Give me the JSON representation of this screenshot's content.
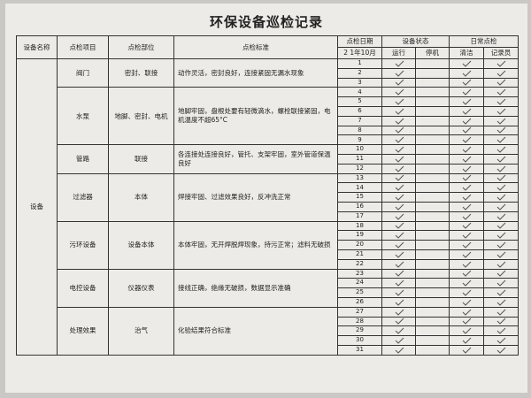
{
  "title": "环保设备巡检记录",
  "header": {
    "columns": [
      "设备名称",
      "点检项目",
      "点检部位",
      "点检标准"
    ],
    "date": "点检日期",
    "date_value": "2 1年10月",
    "status": "设备状态",
    "status_sub": [
      "运行",
      "停机"
    ],
    "daily": "日常点检",
    "daily_sub": [
      "清洁",
      "记录员"
    ]
  },
  "table": {
    "group": "设备",
    "rows": [
      {
        "item": "阀门",
        "part": "密封、联接",
        "standard": "动作灵活，密封良好，连接紧固无漏水现象",
        "days": [
          1,
          2,
          3
        ]
      },
      {
        "item": "水泵",
        "part": "地脚、密封、电机",
        "standard": "地脚牢固，盘根处要有轻微滴水，螺栓联接紧固，电机温度不超65°C",
        "days": [
          4,
          5,
          6,
          7,
          8,
          9
        ]
      },
      {
        "item": "管路",
        "part": "联接",
        "standard": "各连接处连接良好，管托、支架牢固，室外管道保温良好",
        "days": [
          10,
          11,
          12
        ]
      },
      {
        "item": "过滤器",
        "part": "本体",
        "standard": "焊接牢固、过滤效果良好，反冲洗正常",
        "days": [
          13,
          14,
          15,
          16,
          17
        ]
      },
      {
        "item": "污环设备",
        "part": "设备本体",
        "standard": "本体牢固，无开焊脱焊现象，持污正常；滤料无破损",
        "days": [
          18,
          19,
          20,
          21,
          22
        ]
      },
      {
        "item": "电控设备",
        "part": "仪器仪表",
        "standard": "接线正确，绝缘无破损，数据显示准确",
        "days": [
          23,
          24,
          25,
          26
        ]
      },
      {
        "item": "处理效果",
        "part": "治气",
        "standard": "化验结果符合标准",
        "days": [
          27,
          28,
          29,
          30,
          31
        ]
      }
    ]
  }
}
